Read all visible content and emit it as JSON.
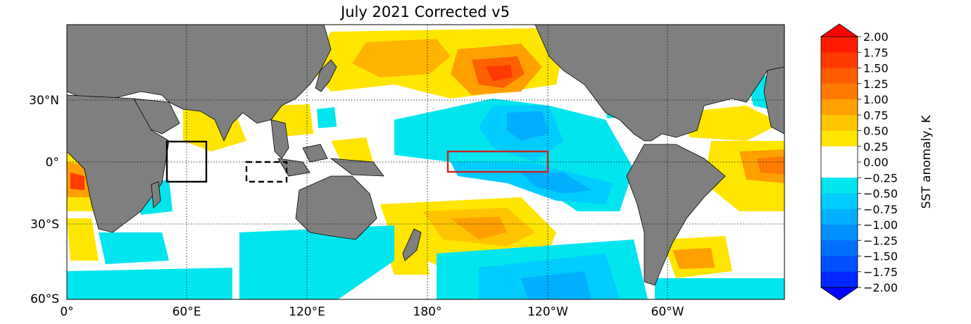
{
  "title": "July 2021 Corrected v5",
  "lat_labels": [
    "30°N",
    "0°",
    "30°S",
    "60°S"
  ],
  "lon_labels": [
    "0°",
    "60°E",
    "120°E",
    "180°",
    "120°W",
    "60°W"
  ],
  "colorbar": {
    "label": "SST anomaly, K",
    "ticks": [
      "2.00",
      "1.75",
      "1.50",
      "1.25",
      "1.00",
      "0.75",
      "0.50",
      "0.25",
      "0.00",
      "−0.25",
      "−0.50",
      "−0.75",
      "−1.00",
      "−1.25",
      "−1.50",
      "−1.75",
      "−2.00"
    ],
    "colors": [
      "#ff1a00",
      "#ff3a00",
      "#ff5c00",
      "#ff7a00",
      "#ffa000",
      "#ffc400",
      "#ffe600",
      "#ffffff",
      "#ffffff",
      "#00e5ee",
      "#00ccff",
      "#00b0ff",
      "#0090ff",
      "#0070ff",
      "#0050ff",
      "#0028ff"
    ],
    "max_color": "#ff0000",
    "min_color": "#0000ff"
  },
  "colors": {
    "land": "#7f7f7f",
    "ocean": "#ffffff",
    "nino_box": "#cc2222",
    "box": "#000000"
  }
}
